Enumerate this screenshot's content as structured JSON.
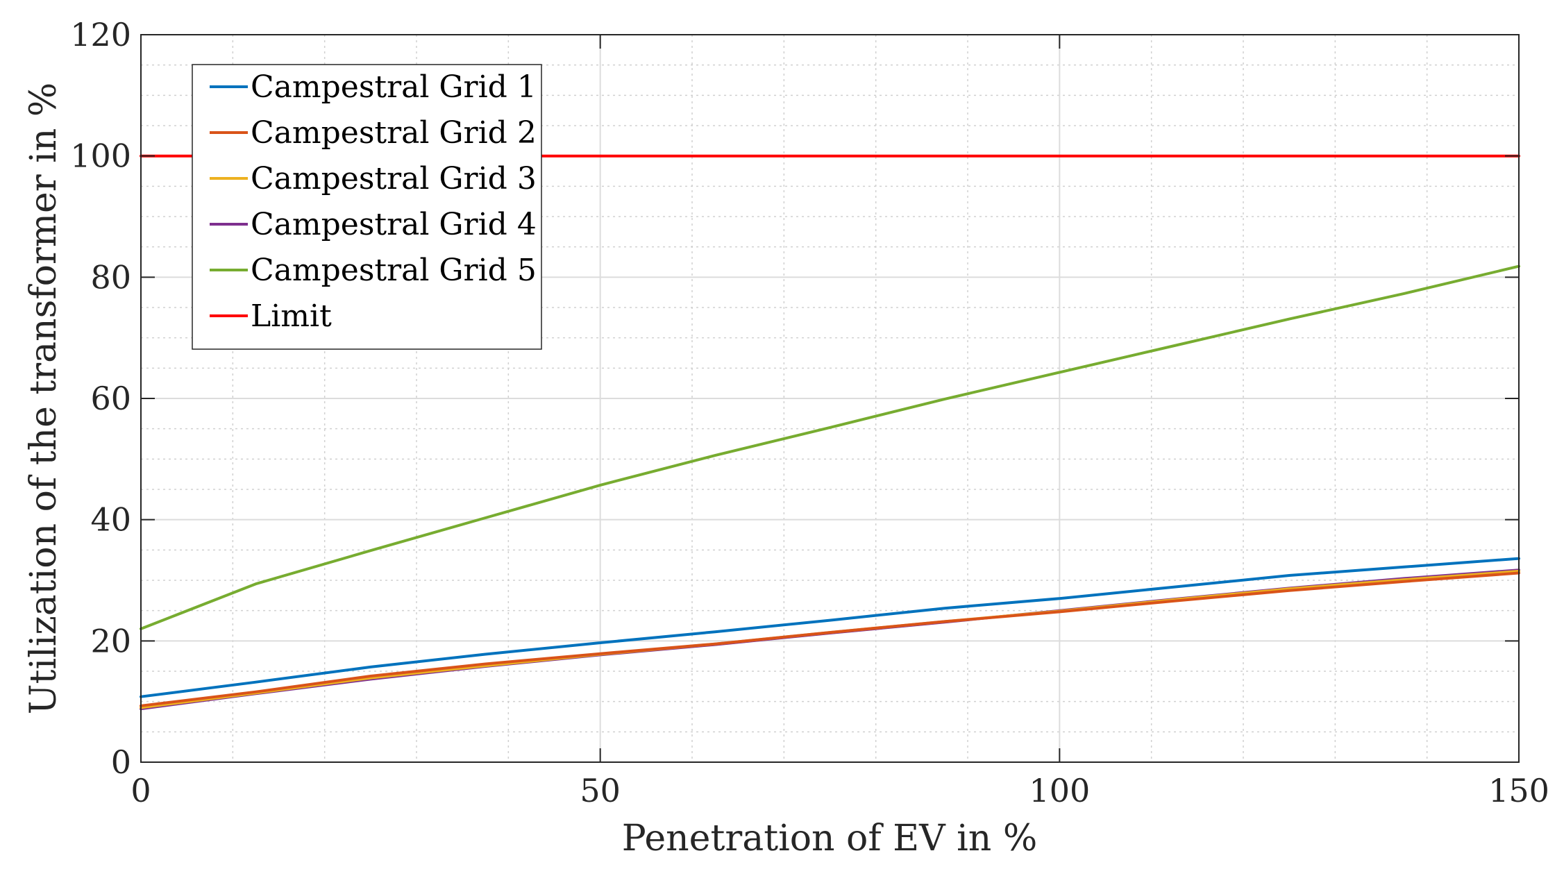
{
  "chart_data": {
    "type": "line",
    "xlabel": "Penetration of EV in %",
    "ylabel": "Utilization of the transformer in %",
    "xlim": [
      0,
      150
    ],
    "ylim": [
      0,
      120
    ],
    "xticks": [
      0,
      50,
      100,
      150
    ],
    "yticks": [
      0,
      20,
      40,
      60,
      80,
      100,
      120
    ],
    "xtick_labels": [
      "0",
      "50",
      "100",
      "150"
    ],
    "ytick_labels": [
      "0",
      "20",
      "40",
      "60",
      "80",
      "100",
      "120"
    ],
    "grid": true,
    "minor_grid": true,
    "legend_position": "top-left",
    "series": [
      {
        "name": "Campestral Grid 1",
        "color": "#0072BD",
        "x": [
          0,
          12.5,
          25,
          37.5,
          50,
          62.5,
          75,
          87.5,
          100,
          112.5,
          125,
          137.5,
          150
        ],
        "y": [
          10.8,
          13.2,
          15.7,
          17.8,
          19.7,
          21.5,
          23.4,
          25.4,
          27.0,
          28.9,
          30.8,
          32.2,
          33.6
        ]
      },
      {
        "name": "Campestral Grid 2",
        "color": "#D95319",
        "x": [
          0,
          12.5,
          25,
          37.5,
          50,
          62.5,
          75,
          87.5,
          100,
          112.5,
          125,
          137.5,
          150
        ],
        "y": [
          9.3,
          11.6,
          14.2,
          16.2,
          17.9,
          19.5,
          21.4,
          23.2,
          24.8,
          26.6,
          28.3,
          29.8,
          31.2
        ]
      },
      {
        "name": "Campestral Grid 3",
        "color": "#EDB120",
        "x": [
          0,
          12.5,
          25,
          37.5,
          50,
          62.5,
          75,
          87.5,
          100,
          112.5,
          125,
          137.5,
          150
        ],
        "y": [
          9.0,
          11.4,
          13.9,
          15.9,
          17.8,
          19.5,
          21.4,
          23.2,
          24.9,
          26.8,
          28.6,
          30.1,
          31.5
        ]
      },
      {
        "name": "Campestral Grid 4",
        "color": "#7E2F8E",
        "x": [
          0,
          12.5,
          25,
          37.5,
          50,
          62.5,
          75,
          87.5,
          100,
          112.5,
          125,
          137.5,
          150
        ],
        "y": [
          8.8,
          11.3,
          13.7,
          15.8,
          17.7,
          19.4,
          21.3,
          23.1,
          25.0,
          26.9,
          28.7,
          30.3,
          31.7
        ]
      },
      {
        "name": "Campestral Grid 5",
        "color": "#77AC30",
        "x": [
          0,
          12.5,
          25,
          37.5,
          50,
          62.5,
          75,
          87.5,
          100,
          112.5,
          125,
          137.5,
          150
        ],
        "y": [
          22.0,
          29.4,
          34.9,
          40.3,
          45.7,
          50.6,
          55.2,
          59.9,
          64.3,
          68.7,
          73.1,
          77.3,
          81.8
        ]
      },
      {
        "name": "Limit",
        "color": "#FF0000",
        "x": [
          0,
          150
        ],
        "y": [
          100,
          100
        ]
      }
    ]
  }
}
